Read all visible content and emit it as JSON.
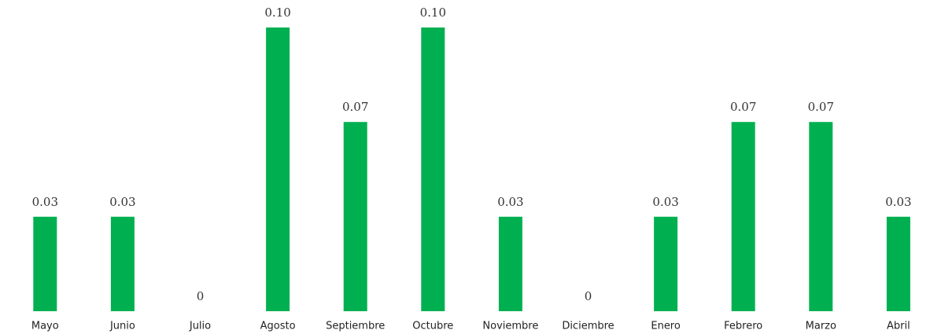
{
  "chart_data": {
    "type": "bar",
    "categories": [
      "Mayo",
      "Junio",
      "Julio",
      "Agosto",
      "Septiembre",
      "Octubre",
      "Noviembre",
      "Diciembre",
      "Enero",
      "Febrero",
      "Marzo",
      "Abril"
    ],
    "values": [
      0.0333,
      0.0333,
      0,
      0.1,
      0.0667,
      0.1,
      0.0333,
      0,
      0.0333,
      0.0667,
      0.0667,
      0.0333
    ],
    "value_labels": [
      "0.03",
      "0.03",
      "0",
      "0.10",
      "0.07",
      "0.10",
      "0.03",
      "0",
      "0.03",
      "0.07",
      "0.07",
      "0.03"
    ],
    "color": "#00b050"
  }
}
